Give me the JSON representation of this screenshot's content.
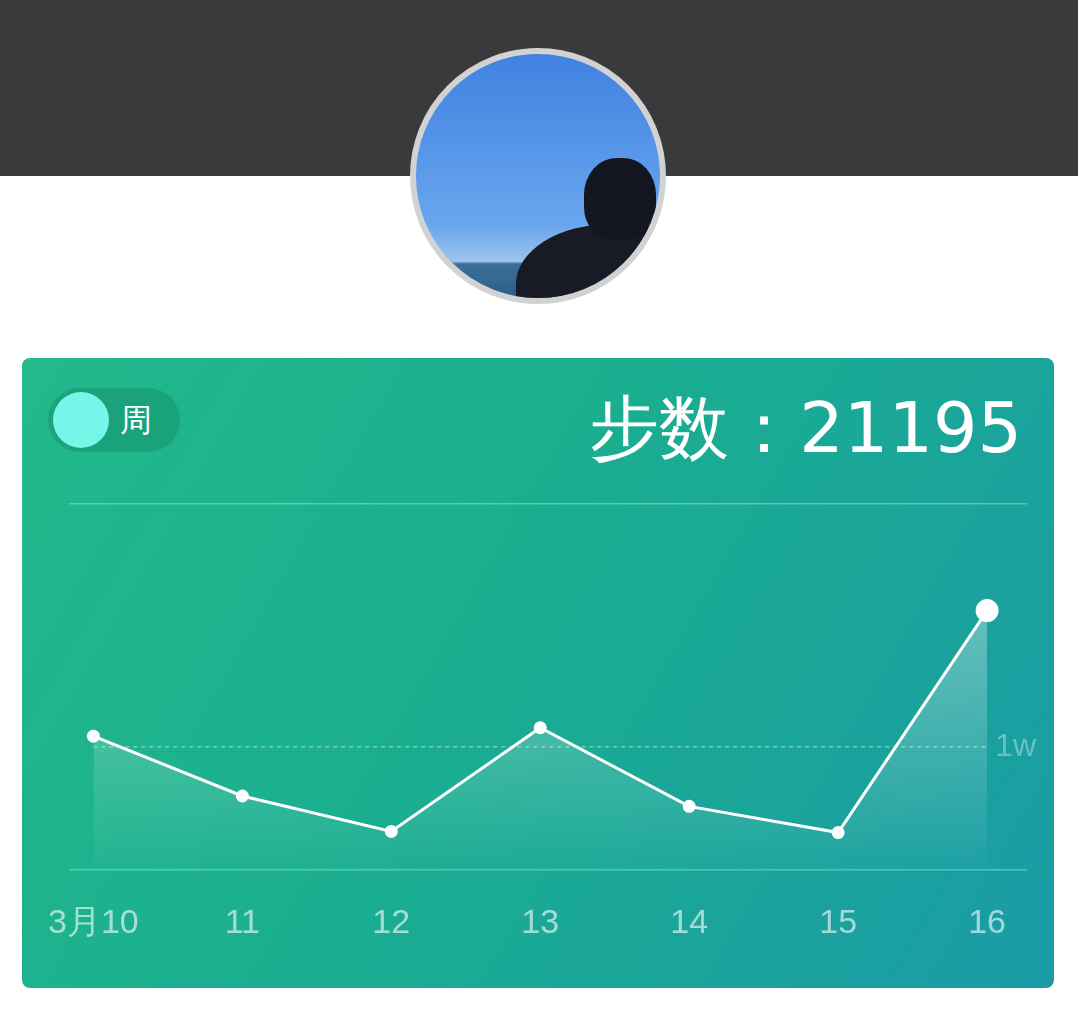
{
  "toggle": {
    "label": "周"
  },
  "chart_data": {
    "type": "line",
    "title": "步数：21195",
    "categories": [
      "3月10",
      "11",
      "12",
      "13",
      "14",
      "15",
      "16"
    ],
    "values": [
      10900,
      6000,
      3100,
      11600,
      5150,
      3000,
      21195
    ],
    "color": "#ffffff",
    "ylim": [
      0,
      30000
    ],
    "yticks": [
      {
        "value": 10000,
        "label": "1w"
      }
    ],
    "grid": true
  }
}
